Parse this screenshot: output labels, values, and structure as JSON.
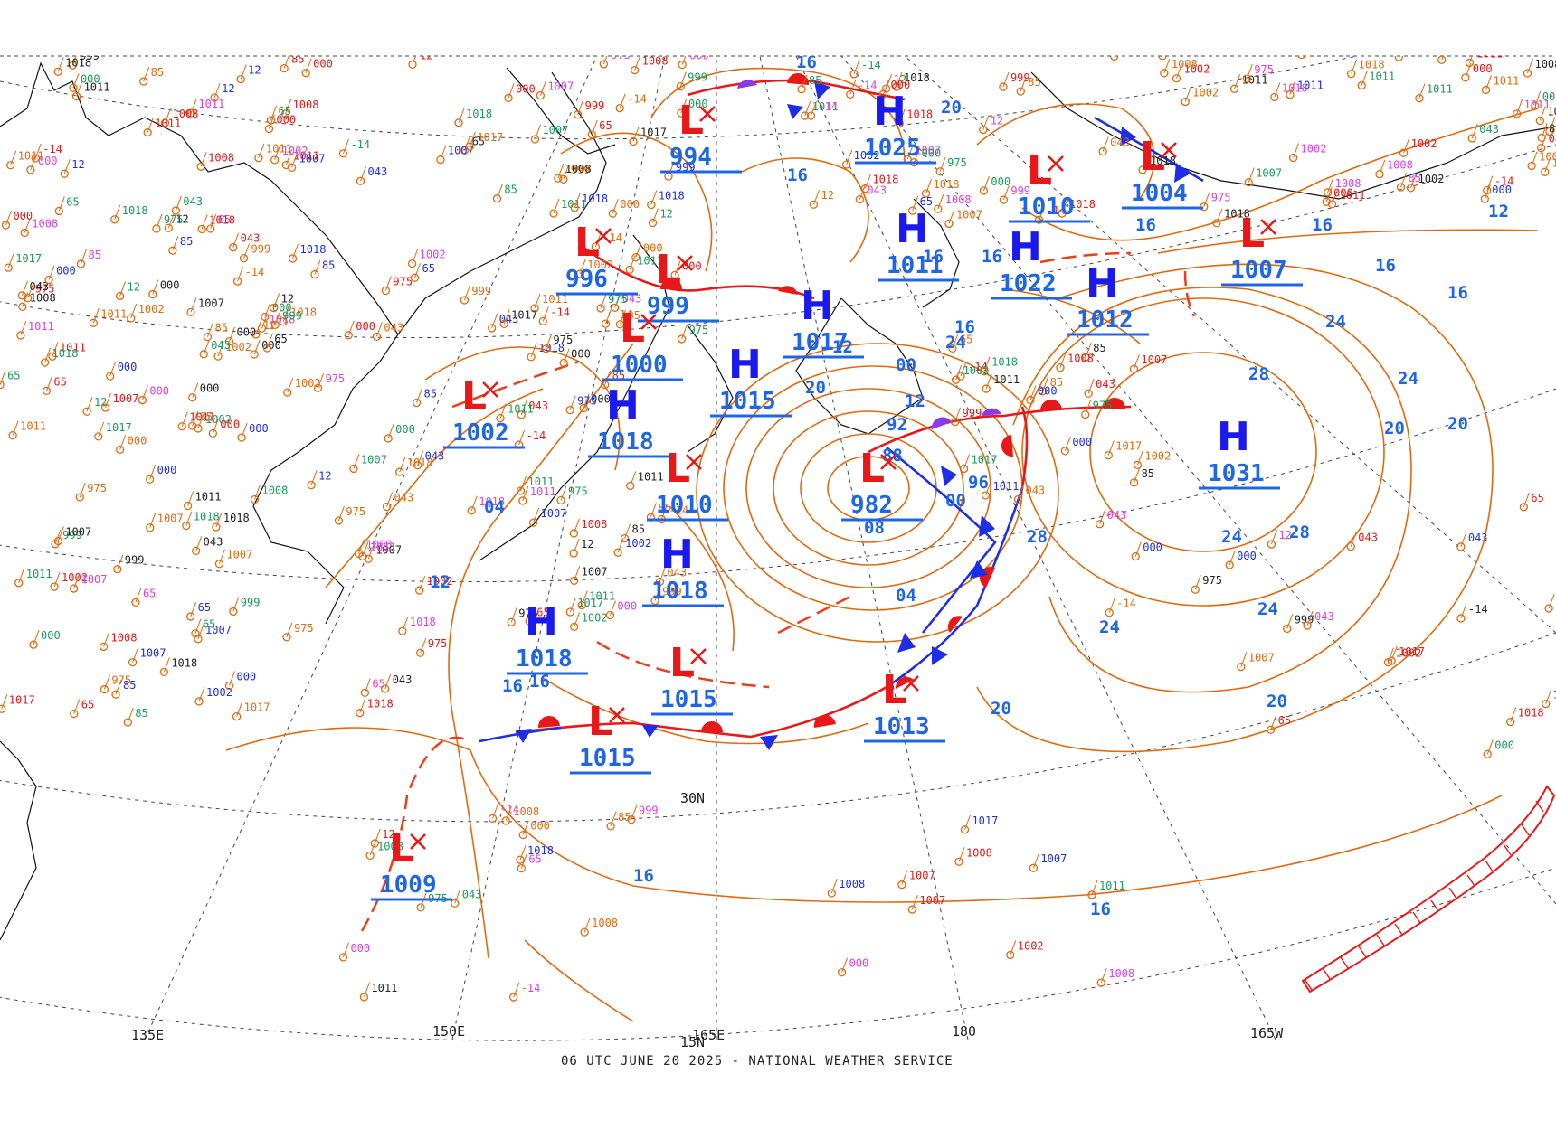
{
  "footer": "06 UTC JUNE 20 2025 - NATIONAL WEATHER SERVICE",
  "colors": {
    "isobar": "#e06a10",
    "high": "#1a1aee",
    "low": "#e81818",
    "pressure_label": "#1e66e6",
    "cold_front": "#1e2ee8",
    "warm_front": "#e81818",
    "occluded_front": "#8a3ae6",
    "trough": "#e8401a",
    "graticule": "#444444"
  },
  "geo_labels": [
    {
      "text": "135E"
    },
    {
      "text": "150E"
    },
    {
      "text": "165E"
    },
    {
      "text": "180"
    },
    {
      "text": "165W"
    },
    {
      "text": "30N"
    },
    {
      "text": "15N"
    }
  ],
  "isobar_labels": [
    {
      "text": "16"
    },
    {
      "text": "20"
    },
    {
      "text": "24"
    },
    {
      "text": "28"
    },
    {
      "text": "12"
    },
    {
      "text": "08"
    },
    {
      "text": "04"
    },
    {
      "text": "00"
    },
    {
      "text": "96"
    },
    {
      "text": "92"
    },
    {
      "text": "88"
    }
  ],
  "centers": [
    {
      "type": "L",
      "value": "994"
    },
    {
      "type": "H",
      "value": "1025"
    },
    {
      "type": "L",
      "value": "1010"
    },
    {
      "type": "L",
      "value": "1004"
    },
    {
      "type": "L",
      "value": "1007"
    },
    {
      "type": "L",
      "value": "996"
    },
    {
      "type": "L",
      "value": "999"
    },
    {
      "type": "L",
      "value": "1000"
    },
    {
      "type": "L",
      "value": "1002"
    },
    {
      "type": "H",
      "value": "1015"
    },
    {
      "type": "H",
      "value": "1017"
    },
    {
      "type": "H",
      "value": "1011"
    },
    {
      "type": "H",
      "value": "1022"
    },
    {
      "type": "H",
      "value": "1012"
    },
    {
      "type": "H",
      "value": "1018"
    },
    {
      "type": "L",
      "value": "1010"
    },
    {
      "type": "L",
      "value": "982"
    },
    {
      "type": "H",
      "value": "1031"
    },
    {
      "type": "H",
      "value": "1018"
    },
    {
      "type": "H",
      "value": "1018"
    },
    {
      "type": "L",
      "value": "1015"
    },
    {
      "type": "L",
      "value": "1015"
    },
    {
      "type": "L",
      "value": "1013"
    },
    {
      "type": "L",
      "value": "1009"
    }
  ],
  "station_values": [
    "85",
    "000",
    "-14",
    "975",
    "12",
    "043",
    "65",
    "1008",
    "1007",
    "1017",
    "1011",
    "1018",
    "999",
    "1002",
    "1011"
  ]
}
